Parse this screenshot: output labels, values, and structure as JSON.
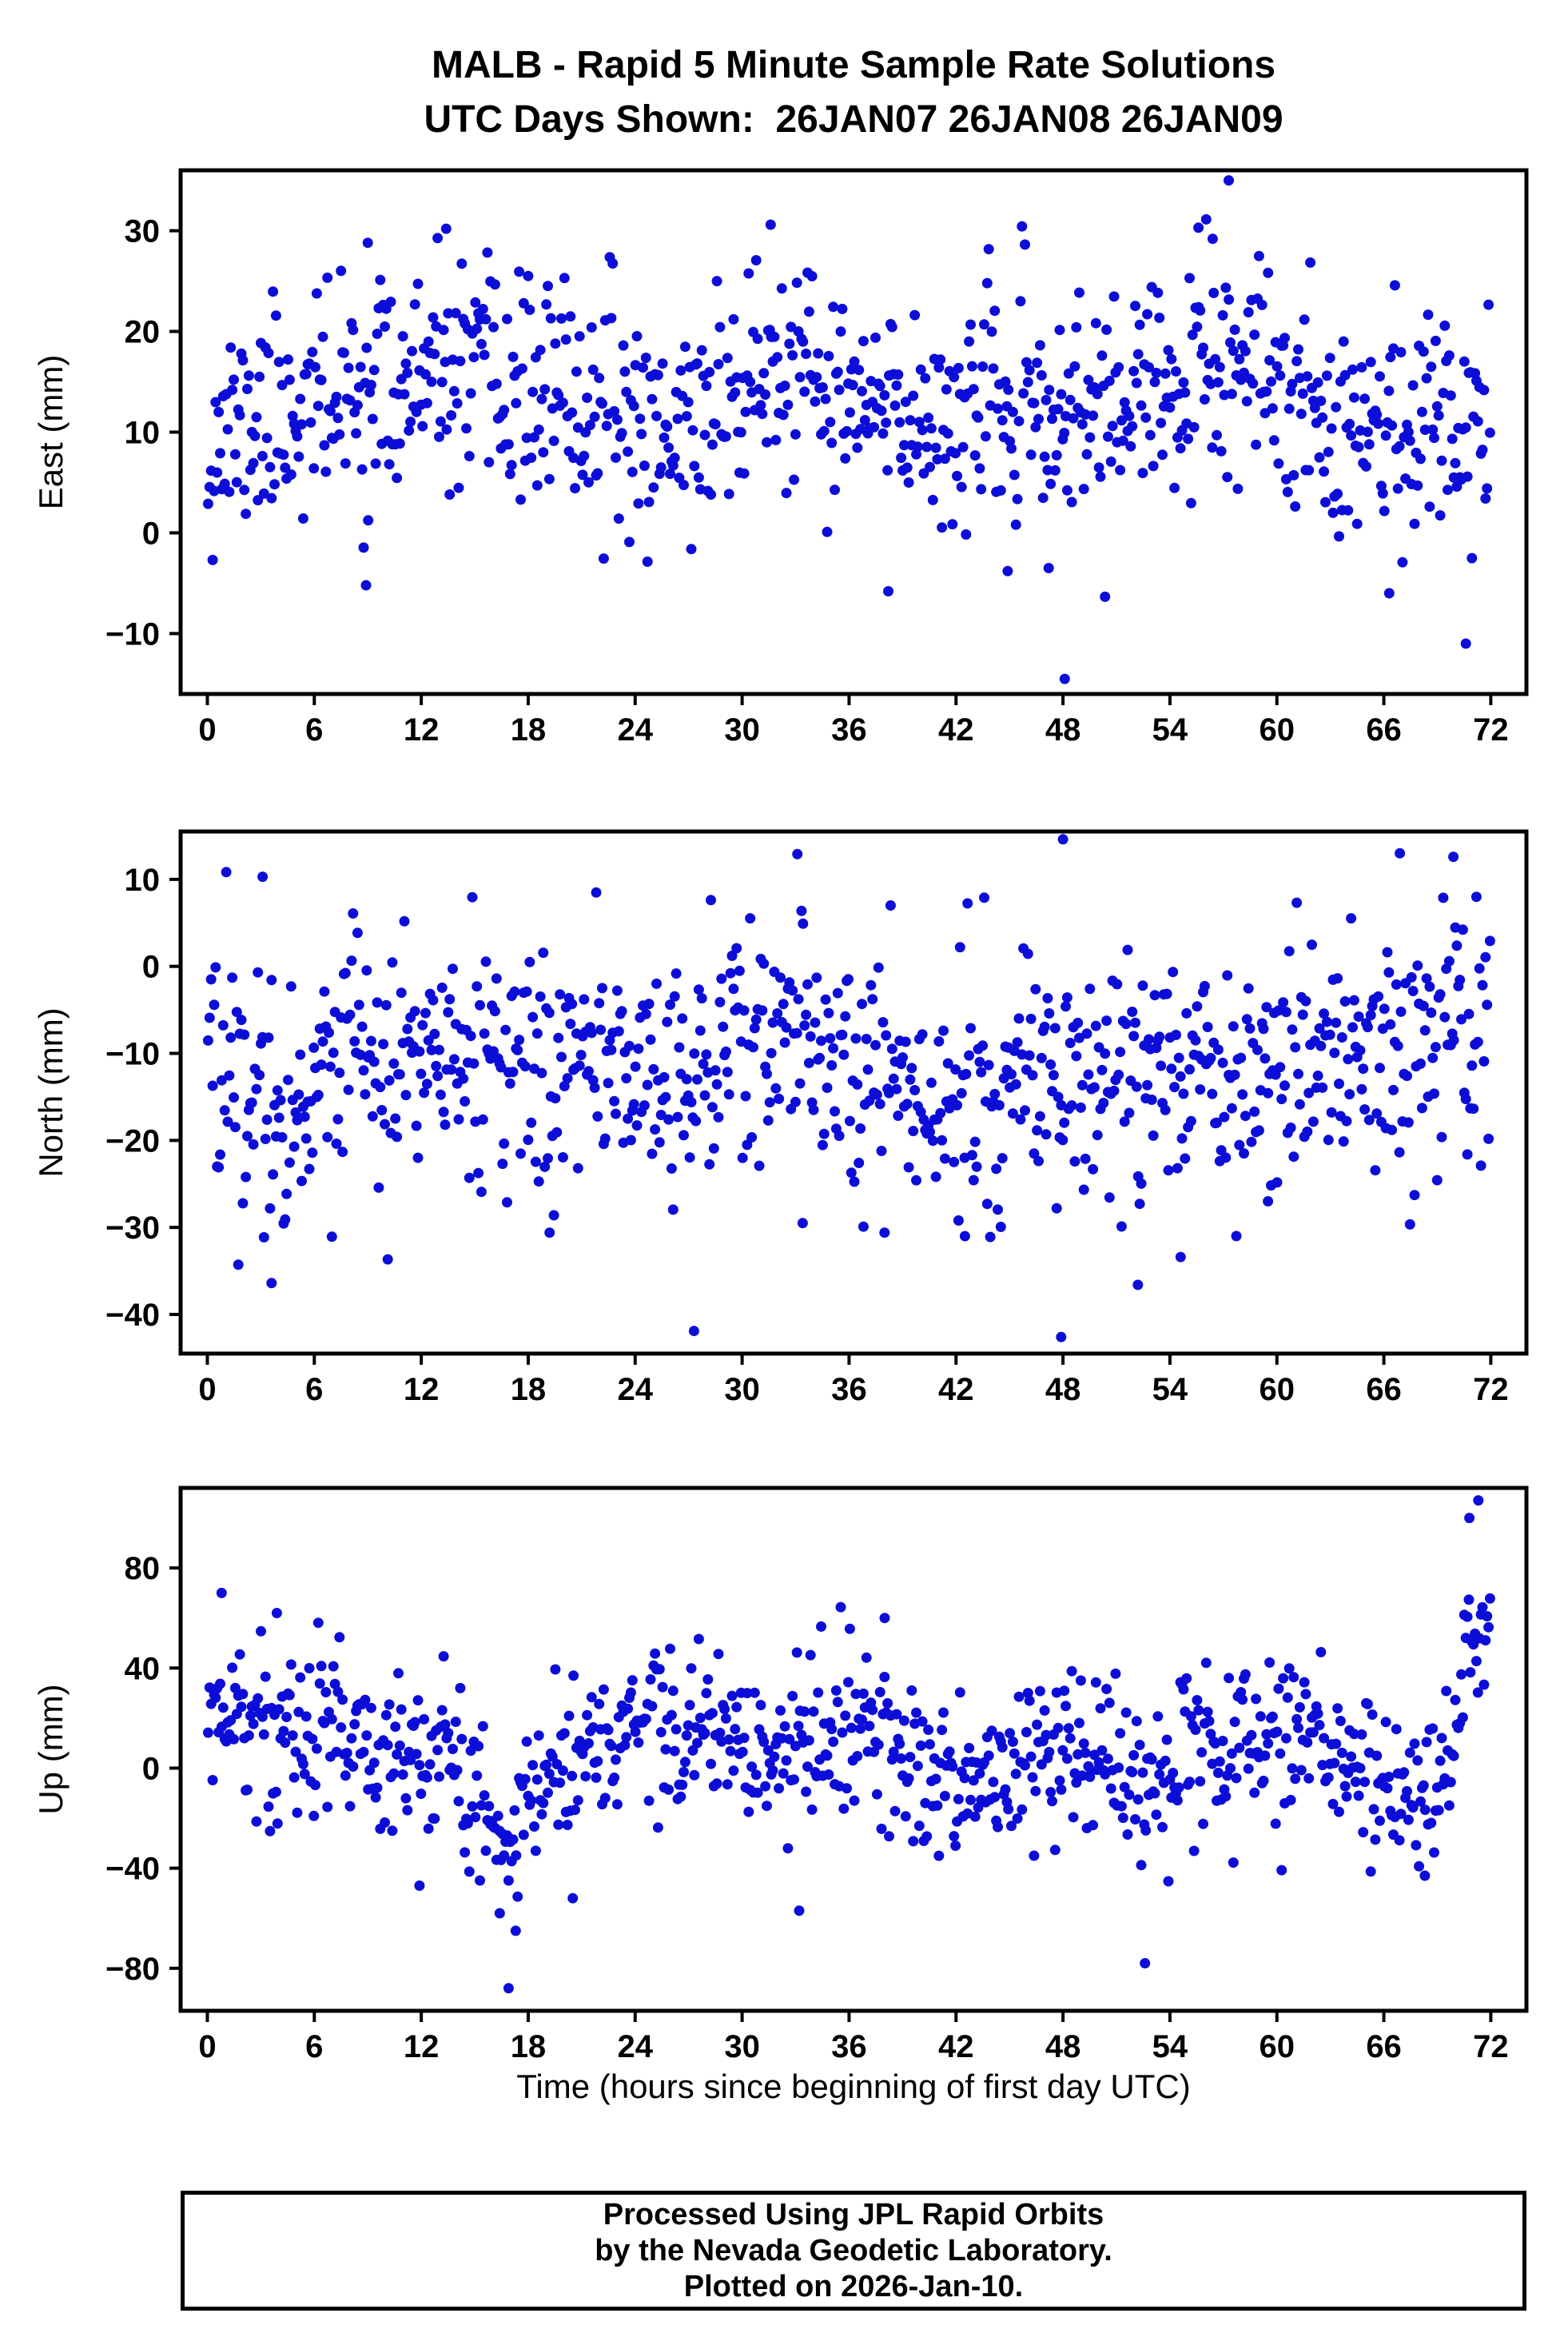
{
  "chart_data": {
    "type": "scatter",
    "title": "MALB - Rapid 5 Minute Sample Rate Solutions",
    "subtitle": "UTC Days Shown:  26JAN07 26JAN08 26JAN09",
    "xlabel": "Time (hours since beginning of first day UTC)",
    "x_range": [
      -1.5,
      74
    ],
    "x_ticks": [
      0,
      6,
      12,
      18,
      24,
      30,
      36,
      42,
      48,
      54,
      60,
      66,
      72
    ],
    "grid": false,
    "legend": "none",
    "marker": {
      "shape": "circle",
      "color": "#0d0dd8",
      "radius_px": 6.5
    },
    "plots": [
      {
        "name": "east",
        "ylabel": "East (mm)",
        "ylim": [
          -16,
          36
        ],
        "yticks": [
          -10,
          0,
          10,
          20,
          30
        ],
        "n": 850,
        "sd": 5.4,
        "seed": 11,
        "trend": [
          [
            0,
            9
          ],
          [
            4,
            12
          ],
          [
            9,
            14
          ],
          [
            14,
            15
          ],
          [
            18,
            14
          ],
          [
            24,
            11
          ],
          [
            27,
            10.5
          ],
          [
            31,
            16
          ],
          [
            34,
            14
          ],
          [
            38,
            11.5
          ],
          [
            44,
            12
          ],
          [
            48,
            11.5
          ],
          [
            52,
            13
          ],
          [
            57,
            15.5
          ],
          [
            60,
            14.5
          ],
          [
            64,
            11.5
          ],
          [
            68,
            10.5
          ],
          [
            72,
            12
          ]
        ],
        "outliers": [
          [
            48.1,
            -14.5
          ],
          [
            57.3,
            35
          ],
          [
            70.6,
            -11
          ],
          [
            38.2,
            -5.8
          ],
          [
            8.9,
            -5.2
          ],
          [
            31.6,
            30.6
          ],
          [
            13.4,
            30.2
          ],
          [
            9.0,
            28.8
          ],
          [
            55.6,
            30.3
          ],
          [
            56.4,
            29.2
          ],
          [
            66.3,
            -6
          ],
          [
            47.2,
            -3.5
          ],
          [
            44.9,
            -3.8
          ]
        ]
      },
      {
        "name": "north",
        "ylabel": "North (mm)",
        "ylim": [
          -44.5,
          15.5
        ],
        "yticks": [
          -40,
          -30,
          -20,
          -10,
          0,
          10
        ],
        "n": 850,
        "sd": 7.0,
        "seed": 22,
        "trend": [
          [
            0,
            -9
          ],
          [
            3,
            -15
          ],
          [
            6,
            -14
          ],
          [
            9,
            -10
          ],
          [
            13,
            -11
          ],
          [
            18,
            -13
          ],
          [
            22,
            -10
          ],
          [
            26,
            -12
          ],
          [
            31,
            -8.5
          ],
          [
            36,
            -12
          ],
          [
            40,
            -14
          ],
          [
            43,
            -16
          ],
          [
            47,
            -11.5
          ],
          [
            52,
            -13.5
          ],
          [
            56,
            -10
          ],
          [
            60,
            -12
          ],
          [
            64,
            -12
          ],
          [
            68,
            -9.5
          ],
          [
            72,
            -7.5
          ]
        ],
        "outliers": [
          [
            48.0,
            14.6
          ],
          [
            47.9,
            -42.6
          ],
          [
            3.1,
            10.3
          ],
          [
            3.6,
            -36.4
          ],
          [
            27.3,
            -41.9
          ],
          [
            19.2,
            -30.6
          ],
          [
            52.2,
            -36.6
          ],
          [
            54.6,
            -33.4
          ],
          [
            33.1,
            12.9
          ],
          [
            66.9,
            13.0
          ],
          [
            69.9,
            12.6
          ],
          [
            42.5,
            -31
          ],
          [
            59.5,
            -27
          ],
          [
            33.4,
            -29.5
          ]
        ]
      },
      {
        "name": "up",
        "ylabel": "Up (mm)",
        "ylim": [
          -97,
          112
        ],
        "yticks": [
          -80,
          -40,
          0,
          40,
          80
        ],
        "n": 850,
        "sd": 16.5,
        "seed": 33,
        "trend": [
          [
            0,
            15
          ],
          [
            1,
            24
          ],
          [
            2,
            17
          ],
          [
            4,
            12
          ],
          [
            8,
            17
          ],
          [
            12,
            0
          ],
          [
            14,
            -2
          ],
          [
            16,
            -22
          ],
          [
            17,
            -28
          ],
          [
            19,
            0
          ],
          [
            22,
            12
          ],
          [
            25,
            19
          ],
          [
            28,
            13
          ],
          [
            31,
            4
          ],
          [
            33,
            6
          ],
          [
            36,
            13
          ],
          [
            38,
            16
          ],
          [
            40,
            -2
          ],
          [
            42,
            -12
          ],
          [
            44,
            -6
          ],
          [
            47,
            8
          ],
          [
            49,
            5
          ],
          [
            52,
            -3
          ],
          [
            55,
            10
          ],
          [
            58,
            7
          ],
          [
            61,
            13
          ],
          [
            64,
            4
          ],
          [
            67,
            -14
          ],
          [
            68,
            -16
          ],
          [
            69,
            -8
          ],
          [
            70,
            18
          ],
          [
            70.8,
            42
          ],
          [
            72,
            46
          ]
        ],
        "outliers": [
          [
            71.3,
            107
          ],
          [
            70.8,
            100
          ],
          [
            16.9,
            -88
          ],
          [
            52.6,
            -78
          ],
          [
            33.2,
            -57
          ],
          [
            11.9,
            -47
          ],
          [
            68.3,
            -43
          ],
          [
            20.5,
            -52
          ],
          [
            17.3,
            -65
          ],
          [
            16.4,
            -58
          ],
          [
            0.8,
            70
          ],
          [
            3.9,
            62
          ],
          [
            38.0,
            60
          ]
        ]
      }
    ]
  },
  "footer_box": {
    "lines": [
      "Processed Using JPL Rapid Orbits",
      "by the Nevada Geodetic Laboratory.",
      "Plotted on 2026-Jan-10."
    ]
  }
}
